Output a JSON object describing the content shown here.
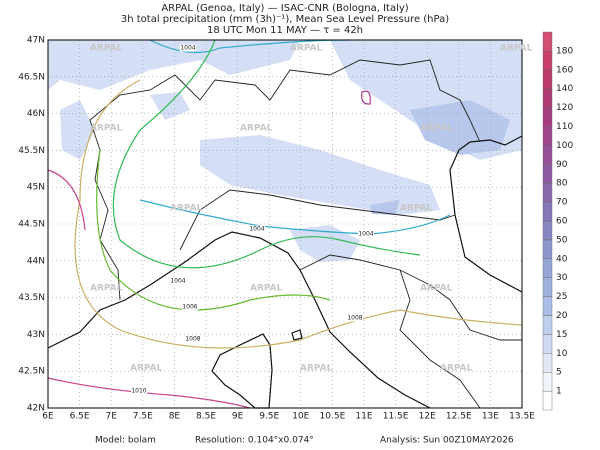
{
  "header": {
    "lines": [
      "ARPAL (Genoa, Italy)  —  ISAC-CNR (Bologna, Italy)",
      "3h total precipitation (mm (3h)⁻¹), Mean Sea Level Pressure (hPa)",
      "18 UTC Mon 11 MAY  —  τ = 42h"
    ]
  },
  "map": {
    "lat_labels": [
      "47N",
      "46.5N",
      "46N",
      "45.5N",
      "45N",
      "44.5N",
      "44N",
      "43.5N",
      "43N",
      "42.5N",
      "42N"
    ],
    "lon_labels": [
      "6E",
      "6.5E",
      "7E",
      "7.5E",
      "8E",
      "8.5E",
      "9E",
      "9.5E",
      "10E",
      "10.5E",
      "11E",
      "11.5E",
      "12E",
      "12.5E",
      "13E",
      "13.5E"
    ],
    "isobar_labels": [
      "1004",
      "1004",
      "1004",
      "1004",
      "1006",
      "1008",
      "1008",
      "1010"
    ],
    "watermark": "ARPAL"
  },
  "colorbar": {
    "labels": [
      "1",
      "5",
      "10",
      "15",
      "20",
      "25",
      "30",
      "40",
      "50",
      "60",
      "70",
      "80",
      "90",
      "100",
      "110",
      "120",
      "140",
      "160",
      "180"
    ]
  },
  "footer": {
    "model": "Model:  bolam",
    "resolution": "Resolution: 0.104°x0.074°",
    "analysis": "Analysis: Sun 00Z10MAY2026"
  }
}
